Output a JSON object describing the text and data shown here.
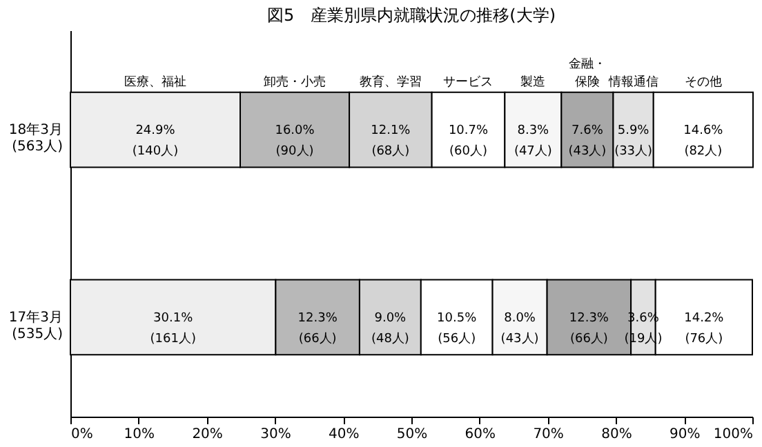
{
  "chart_data": {
    "type": "bar",
    "title": "図5　産業別県内就職状況の推移(大学)",
    "orientation": "horizontal",
    "stacked": true,
    "legend": false,
    "grid": false,
    "categories": [
      "18年3月\n(563人)",
      "17年3月\n(535人)"
    ],
    "xlim": [
      0,
      100
    ],
    "xticks": [
      {
        "value": 0,
        "label": "0%"
      },
      {
        "value": 10,
        "label": "10%"
      },
      {
        "value": 20,
        "label": "20%"
      },
      {
        "value": 30,
        "label": "30%"
      },
      {
        "value": 40,
        "label": "40%"
      },
      {
        "value": 50,
        "label": "50%"
      },
      {
        "value": 60,
        "label": "60%"
      },
      {
        "value": 70,
        "label": "70%"
      },
      {
        "value": 80,
        "label": "80%"
      },
      {
        "value": 90,
        "label": "90%"
      },
      {
        "value": 100,
        "label": "100%"
      }
    ],
    "series": [
      {
        "name": "医療、福祉",
        "color": "#eeeeee",
        "values": [
          24.9,
          30.1
        ],
        "value_labels": [
          "24.9%\n(140人)",
          "30.1%\n(161人)"
        ]
      },
      {
        "name": "卸売・小売",
        "color": "#b8b8b8",
        "values": [
          16.0,
          12.3
        ],
        "value_labels": [
          "16.0%\n(90人)",
          "12.3%\n(66人)"
        ]
      },
      {
        "name": "教育、学習",
        "color": "#d4d4d4",
        "values": [
          12.1,
          9.0
        ],
        "value_labels": [
          "12.1%\n(68人)",
          "9.0%\n(48人)"
        ]
      },
      {
        "name": "サービス",
        "color": "#ffffff",
        "values": [
          10.7,
          10.5
        ],
        "value_labels": [
          "10.7%\n(60人)",
          "10.5%\n(56人)"
        ]
      },
      {
        "name": "製造",
        "color": "#f6f6f6",
        "values": [
          8.3,
          8.0
        ],
        "value_labels": [
          "8.3%\n(47人)",
          "8.0%\n(43人)"
        ]
      },
      {
        "name": "金融・保険",
        "color": "#a8a8a8",
        "values": [
          7.6,
          12.3
        ],
        "value_labels": [
          "7.6%\n(43人)",
          "12.3%\n(66人)"
        ]
      },
      {
        "name": "情報通信",
        "color": "#e2e2e2",
        "values": [
          5.9,
          3.6
        ],
        "value_labels": [
          "5.9%\n(33人)",
          "3.6%\n(19人)"
        ]
      },
      {
        "name": "その他",
        "color": "#ffffff",
        "values": [
          14.6,
          14.2
        ],
        "value_labels": [
          "14.6%\n(82人)",
          "14.2%\n(76人)"
        ]
      }
    ]
  }
}
